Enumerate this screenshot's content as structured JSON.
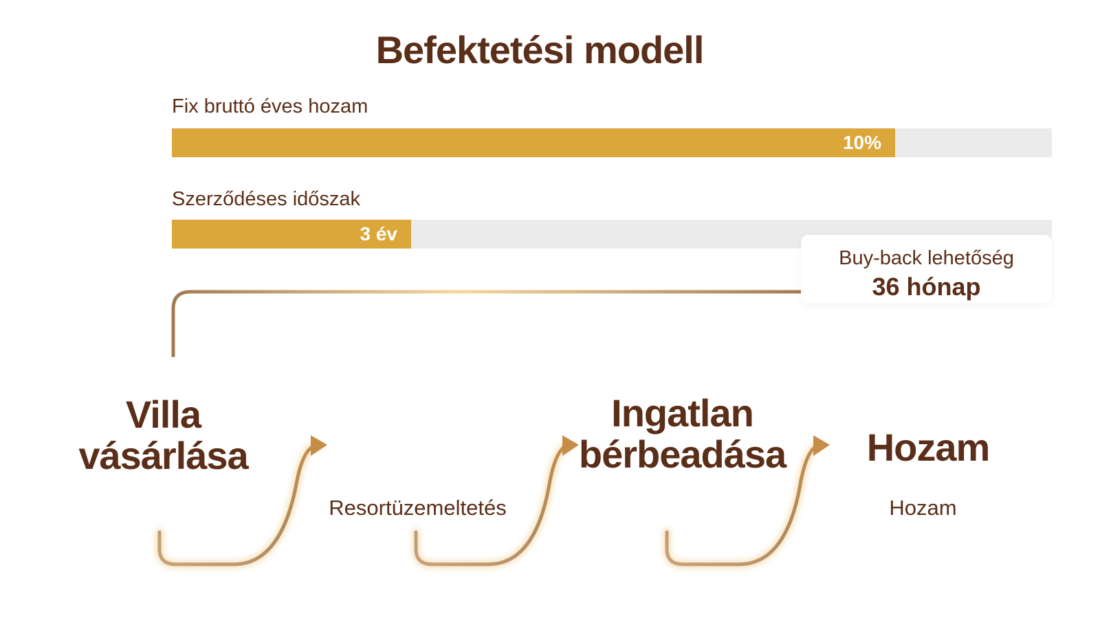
{
  "header": {
    "title": "Befektetési modell"
  },
  "bars": [
    {
      "label": "Fix bruttó éves hozam",
      "value": "10%"
    },
    {
      "label": "Szerződéses időszak",
      "value": "3 év"
    }
  ],
  "callout": {
    "label": "Buy-back lehetőség",
    "value": "36 hónap"
  },
  "flow": [
    {
      "title": "Villa vásárlása"
    },
    {
      "caption": "Resortüzemeltetés"
    },
    {
      "title": "Ingatlan bérbeadása"
    },
    {
      "title": "Hozam",
      "caption": "Hozam"
    }
  ]
}
